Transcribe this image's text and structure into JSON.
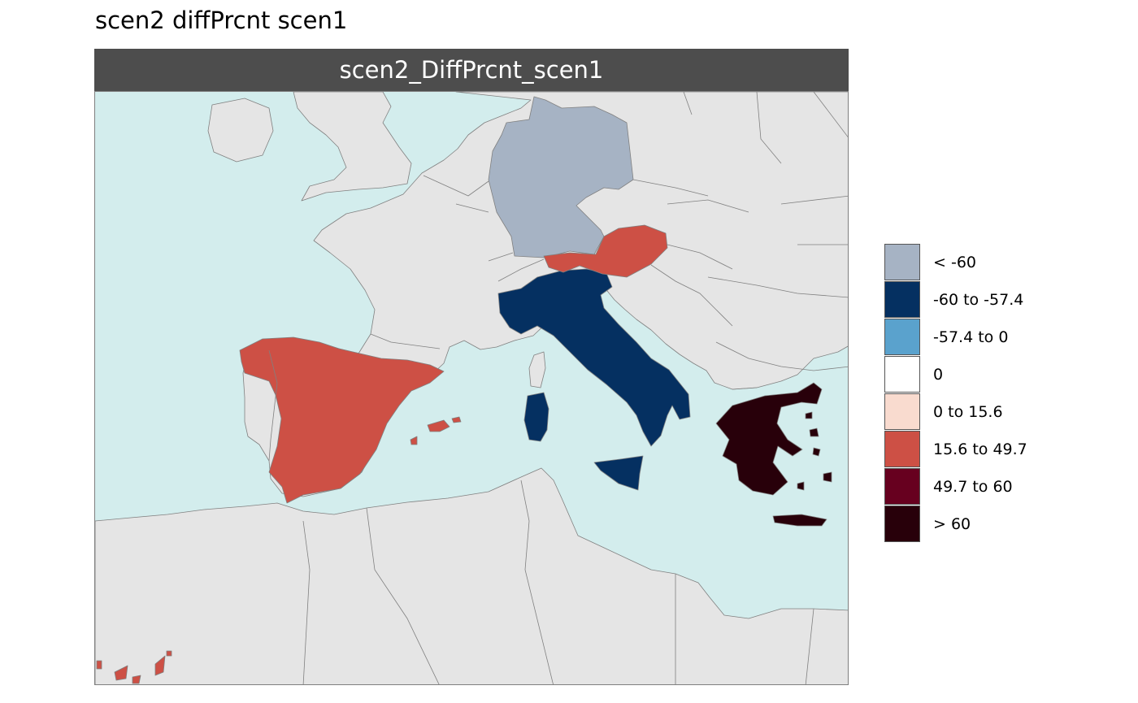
{
  "title": "scen2 diffPrcnt scen1",
  "panel": {
    "strip_label": "scen2_DiffPrcnt_scen1"
  },
  "map": {
    "region_shown": "Western and Central Mediterranean / Southern Europe",
    "colors": {
      "sea": "#d3eded",
      "land_no_data": "#e5e5e5",
      "borders": "#808080",
      "strip": "#4d4d4d"
    },
    "regions": [
      {
        "name": "Germany",
        "class": "< -60"
      },
      {
        "name": "Italy",
        "class": "-60 to -57.4"
      },
      {
        "name": "Spain",
        "class": "15.6 to 49.7"
      },
      {
        "name": "Austria",
        "class": "15.6 to 49.7"
      },
      {
        "name": "Greece",
        "class": "> 60"
      }
    ]
  },
  "legend": {
    "items": [
      {
        "label": "< -60",
        "color": "#a6b3c4"
      },
      {
        "label": "-60 to -57.4",
        "color": "#053061"
      },
      {
        "label": "-57.4 to 0",
        "color": "#5aa2cd"
      },
      {
        "label": "0",
        "color": "#ffffff"
      },
      {
        "label": "0 to 15.6",
        "color": "#f9dbcf"
      },
      {
        "label": "15.6 to 49.7",
        "color": "#cd5045"
      },
      {
        "label": "49.7 to 60",
        "color": "#67001f"
      },
      {
        "label": "> 60",
        "color": "#28000a"
      }
    ]
  }
}
